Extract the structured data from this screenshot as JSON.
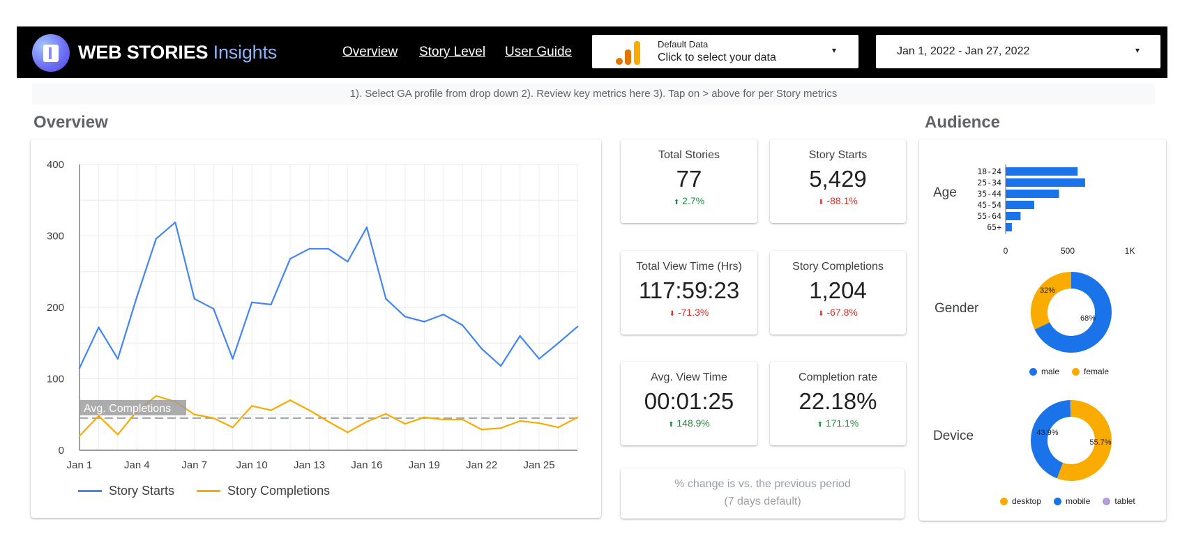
{
  "header": {
    "brand_bold": "WEB STORIES",
    "brand_light": "Insights",
    "nav": [
      "Overview",
      "Story Level",
      "User Guide"
    ],
    "data_selector": {
      "label": "Default Data",
      "value": "Click to select your data"
    },
    "date_range": "Jan 1, 2022 - Jan 27, 2022",
    "caret": "▾"
  },
  "instructions": "1). Select GA profile from drop down 2). Review key metrics here 3). Tap on > above for per Story metrics",
  "sections": {
    "overview": "Overview",
    "audience": "Audience"
  },
  "colors": {
    "blue": "#4285f4",
    "orange": "#f9ab00",
    "up": "#1e8e3e",
    "down": "#d93025"
  },
  "chart_data": {
    "type": "line",
    "x": [
      "Jan 1",
      "Jan 2",
      "Jan 3",
      "Jan 4",
      "Jan 5",
      "Jan 6",
      "Jan 7",
      "Jan 8",
      "Jan 9",
      "Jan 10",
      "Jan 11",
      "Jan 12",
      "Jan 13",
      "Jan 14",
      "Jan 15",
      "Jan 16",
      "Jan 17",
      "Jan 18",
      "Jan 19",
      "Jan 20",
      "Jan 21",
      "Jan 22",
      "Jan 23",
      "Jan 24",
      "Jan 25",
      "Jan 26",
      "Jan 27"
    ],
    "xticks": [
      "Jan 1",
      "Jan 4",
      "Jan 7",
      "Jan 10",
      "Jan 13",
      "Jan 16",
      "Jan 19",
      "Jan 22",
      "Jan 25"
    ],
    "yticks": [
      0,
      100,
      200,
      300,
      400
    ],
    "ylim": [
      0,
      400
    ],
    "series": [
      {
        "name": "Story Starts",
        "color": "#4285f4",
        "values": [
          115,
          172,
          128,
          215,
          296,
          319,
          212,
          198,
          128,
          207,
          204,
          268,
          282,
          282,
          264,
          312,
          212,
          187,
          180,
          190,
          175,
          142,
          118,
          160,
          128,
          150,
          173
        ]
      },
      {
        "name": "Story Completions",
        "color": "#f9ab00",
        "values": [
          20,
          48,
          22,
          55,
          76,
          68,
          50,
          45,
          32,
          62,
          56,
          70,
          56,
          40,
          25,
          40,
          51,
          37,
          46,
          43,
          43,
          29,
          31,
          41,
          38,
          32,
          46
        ]
      }
    ],
    "reference_line": {
      "label": "Avg. Completions",
      "value": 45
    }
  },
  "kpis": [
    {
      "label": "Total Stories",
      "value": "77",
      "change": "2.7%",
      "direction": "up"
    },
    {
      "label": "Story Starts",
      "value": "5,429",
      "change": "-88.1%",
      "direction": "down"
    },
    {
      "label": "Total View Time (Hrs)",
      "value": "117:59:23",
      "change": "-71.3%",
      "direction": "down"
    },
    {
      "label": "Story Completions",
      "value": "1,204",
      "change": "-67.8%",
      "direction": "down"
    },
    {
      "label": "Avg. View Time",
      "value": "00:01:25",
      "change": "148.9%",
      "direction": "up"
    },
    {
      "label": "Completion rate",
      "value": "22.18%",
      "change": "171.1%",
      "direction": "up"
    }
  ],
  "arrows": {
    "up": "⬆",
    "down": "⬇"
  },
  "note_line1": "% change is vs. the previous period",
  "note_line2": "(7 days default)",
  "audience": {
    "age": {
      "label": "Age",
      "categories": [
        "18-24",
        "25-34",
        "35-44",
        "45-54",
        "55-64",
        "65+"
      ],
      "values": [
        580,
        640,
        430,
        230,
        120,
        50
      ],
      "xticks": [
        "0",
        "500",
        "1K"
      ],
      "xmax": 1000
    },
    "gender": {
      "label": "Gender",
      "slices": [
        {
          "name": "male",
          "value": 68,
          "label": "68%",
          "color": "#1a73e8"
        },
        {
          "name": "female",
          "value": 32,
          "label": "32%",
          "color": "#f9ab00"
        }
      ]
    },
    "device": {
      "label": "Device",
      "slices": [
        {
          "name": "desktop",
          "value": 55.7,
          "label": "55.7%",
          "color": "#f9ab00"
        },
        {
          "name": "mobile",
          "value": 43.9,
          "label": "43.9%",
          "color": "#1a73e8"
        },
        {
          "name": "tablet",
          "value": 0.4,
          "label": "",
          "color": "#b39ddb"
        }
      ]
    }
  }
}
